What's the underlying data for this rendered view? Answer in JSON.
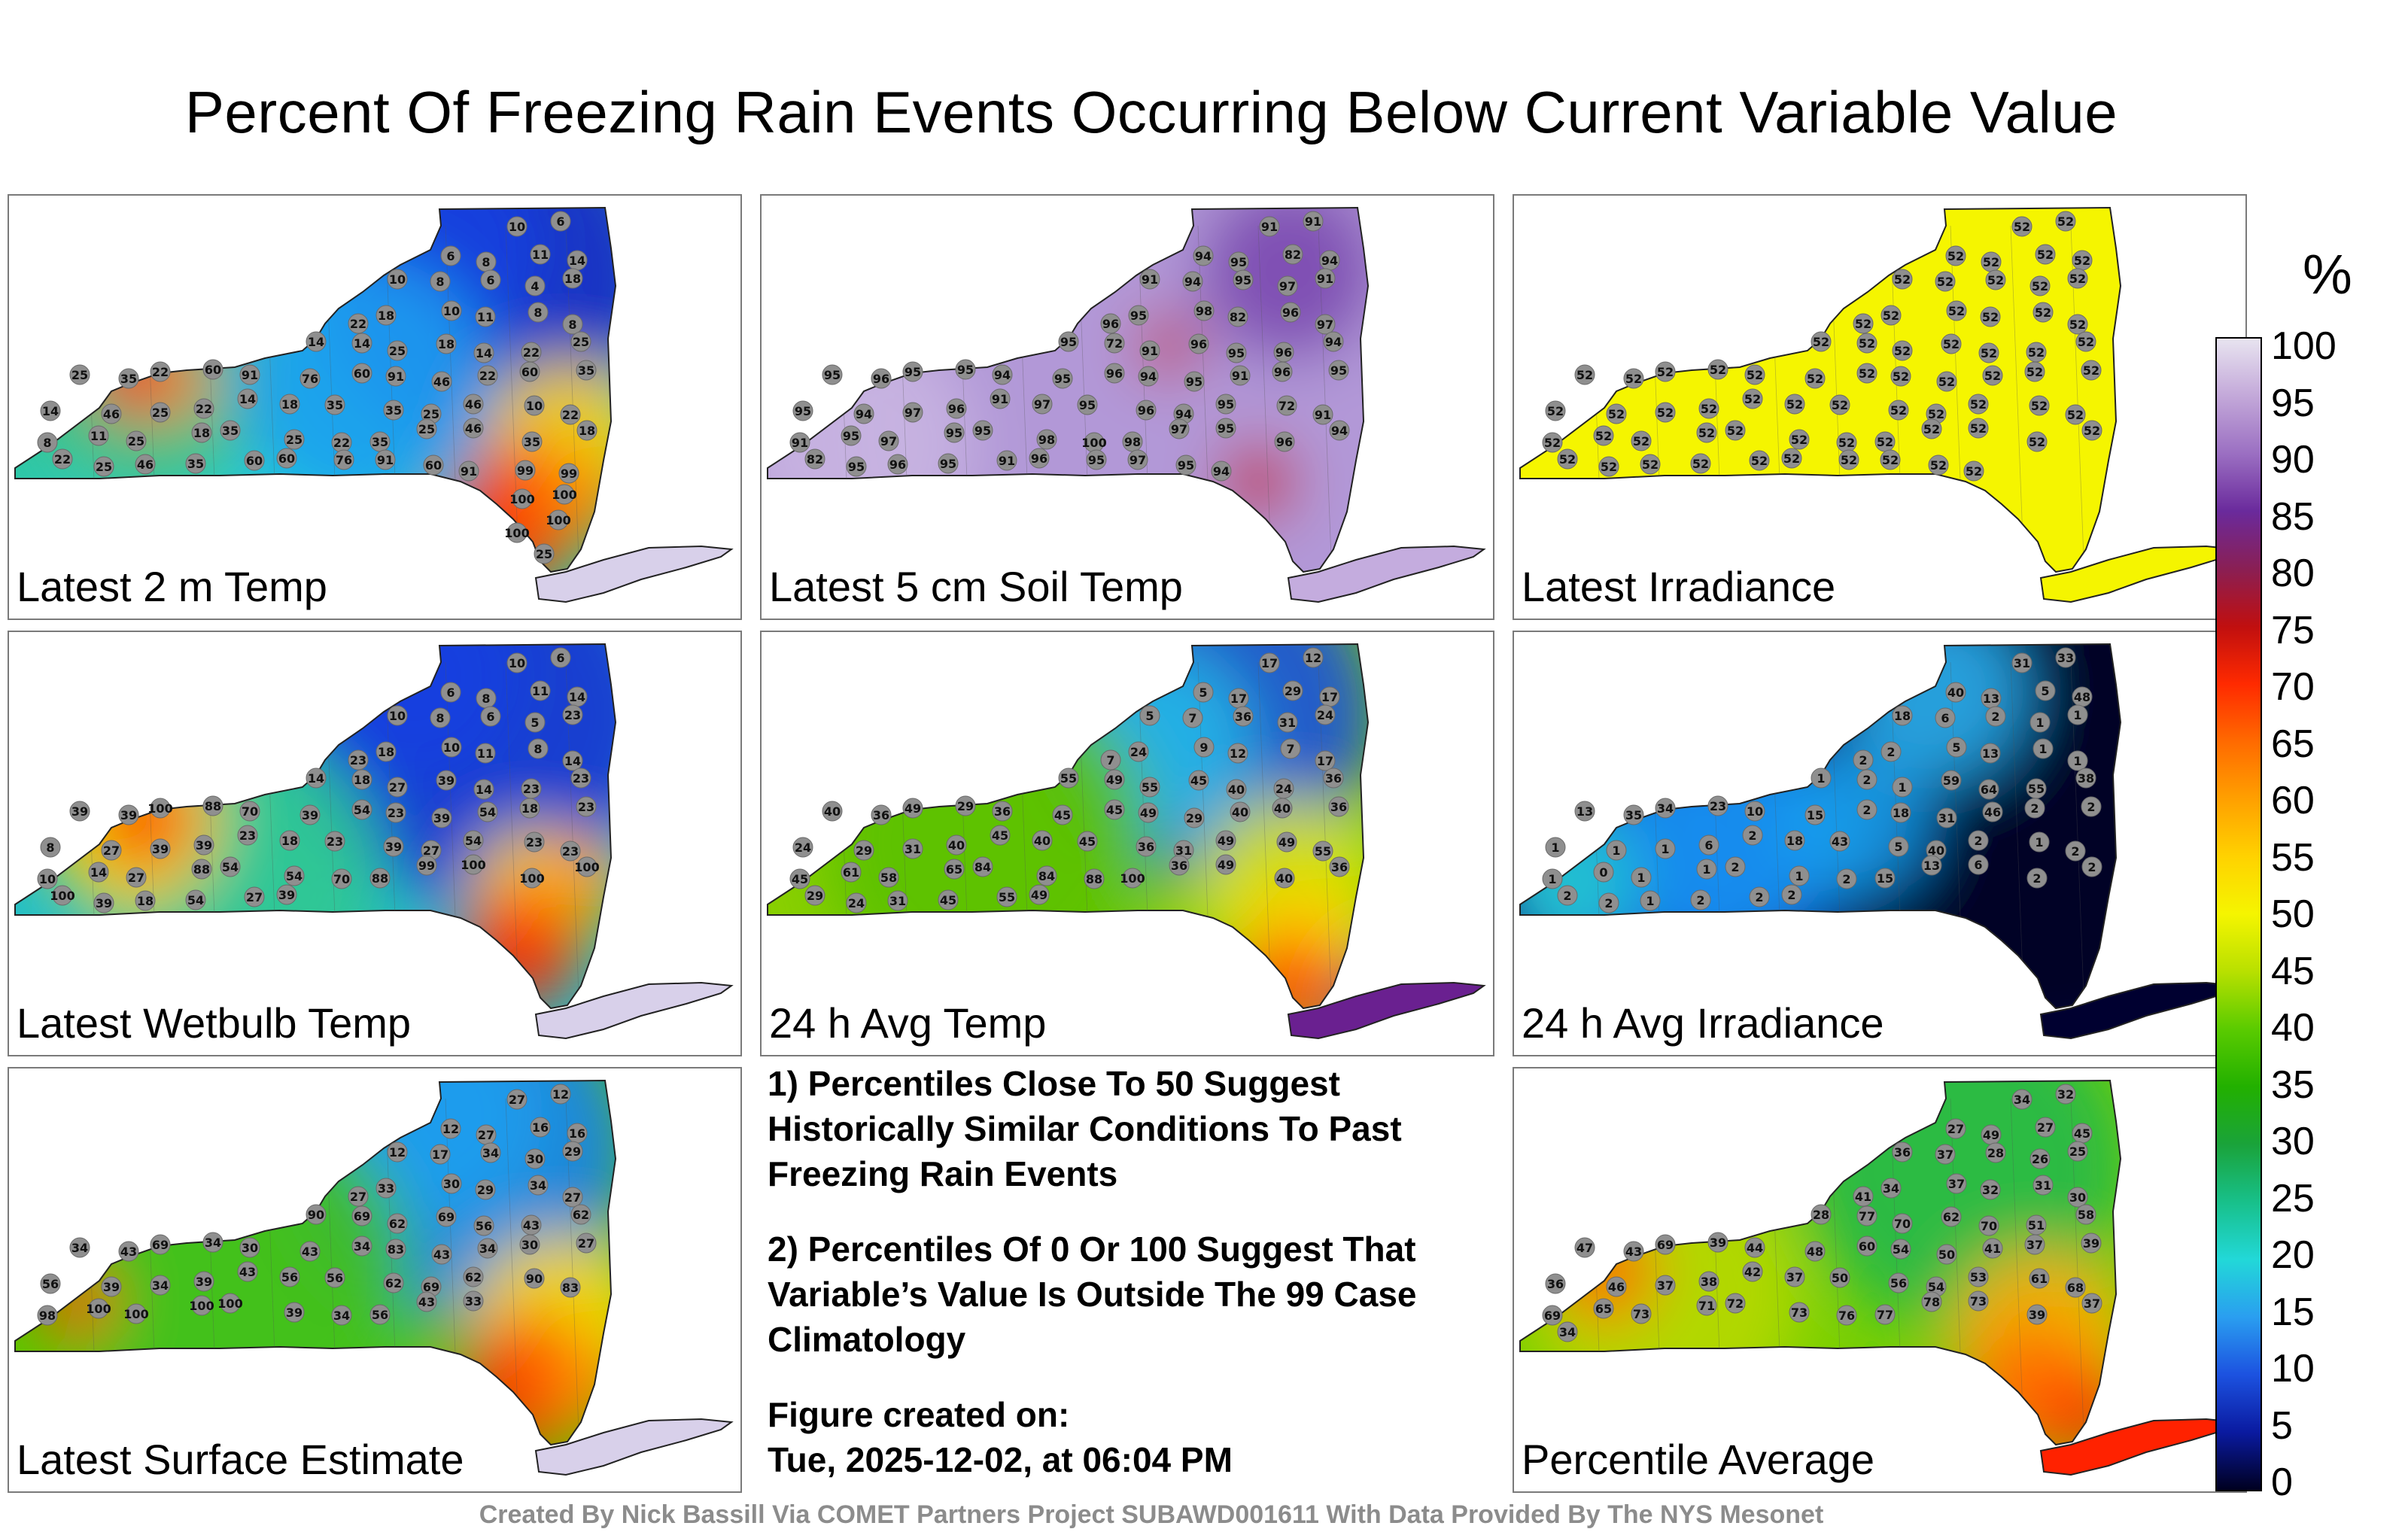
{
  "title": "Percent Of Freezing Rain Events Occurring Below Current Variable Value",
  "panels": [
    {
      "label": "Latest 2 m Temp",
      "theme": "temp2m",
      "values": [
        "10",
        "6",
        "6",
        "8",
        "11",
        "14",
        "10",
        "8",
        "6",
        "4",
        "18",
        "22",
        "18",
        "10",
        "11",
        "8",
        "8",
        "14",
        "14",
        "25",
        "18",
        "14",
        "22",
        "25",
        "25",
        "35",
        "22",
        "60",
        "91",
        "76",
        "60",
        "91",
        "46",
        "22",
        "60",
        "35",
        "14",
        "46",
        "25",
        "22",
        "14",
        "18",
        "35",
        "35",
        "25",
        "46",
        "10",
        "22",
        "8",
        "11",
        "25",
        "18",
        "35",
        "25",
        "22",
        "35",
        "25",
        "46",
        "35",
        "18",
        "22",
        "25",
        "46",
        "35",
        "60",
        "60",
        "76",
        "91",
        "60",
        "91",
        "99",
        "99",
        "100",
        "100",
        "100",
        "100",
        "25",
        "91"
      ]
    },
    {
      "label": "Latest 5 cm Soil Temp",
      "theme": "soil",
      "values": [
        "91",
        "91",
        "94",
        "95",
        "82",
        "94",
        "91",
        "94",
        "95",
        "97",
        "91",
        "96",
        "95",
        "98",
        "82",
        "96",
        "97",
        "95",
        "72",
        "91",
        "96",
        "95",
        "96",
        "94",
        "95",
        "96",
        "95",
        "95",
        "94",
        "95",
        "96",
        "94",
        "95",
        "91",
        "96",
        "95",
        "95",
        "94",
        "97",
        "96",
        "91",
        "97",
        "95",
        "96",
        "94",
        "95",
        "72",
        "91",
        "91",
        "95",
        "97",
        "95",
        "95",
        "98",
        "100",
        "98",
        "97",
        "95",
        "96",
        "94",
        "82",
        "95",
        "96",
        "95",
        "91",
        "96",
        "95",
        "97",
        "95",
        "94"
      ]
    },
    {
      "label": "Latest Irradiance",
      "theme": "irr",
      "values": [
        "52",
        "52",
        "52",
        "52",
        "52",
        "52",
        "52",
        "52",
        "52",
        "52",
        "52",
        "52",
        "52",
        "52",
        "52",
        "52",
        "52",
        "52",
        "52",
        "52",
        "52",
        "52",
        "52",
        "52",
        "52",
        "52",
        "52",
        "52",
        "52",
        "52",
        "52",
        "52",
        "52",
        "52",
        "52",
        "52",
        "52",
        "52",
        "52",
        "52",
        "52",
        "52",
        "52",
        "52",
        "52",
        "52",
        "52",
        "52",
        "52",
        "52",
        "52",
        "52",
        "52",
        "52",
        "52",
        "52",
        "52",
        "52",
        "52",
        "52",
        "52",
        "52",
        "52",
        "52",
        "52",
        "52",
        "52",
        "52",
        "52",
        "52"
      ]
    },
    {
      "label": "Latest Wetbulb Temp",
      "theme": "wetbulb",
      "values": [
        "10",
        "6",
        "6",
        "8",
        "11",
        "14",
        "10",
        "8",
        "6",
        "5",
        "23",
        "23",
        "18",
        "10",
        "11",
        "8",
        "14",
        "14",
        "18",
        "27",
        "39",
        "14",
        "23",
        "23",
        "39",
        "39",
        "100",
        "88",
        "70",
        "39",
        "54",
        "23",
        "39",
        "54",
        "18",
        "23",
        "8",
        "27",
        "39",
        "39",
        "23",
        "18",
        "23",
        "39",
        "27",
        "54",
        "23",
        "23",
        "10",
        "14",
        "27",
        "88",
        "54",
        "54",
        "70",
        "88",
        "99",
        "100",
        "100",
        "100",
        "100",
        "39",
        "18",
        "54",
        "27",
        "39"
      ]
    },
    {
      "label": "24 h Avg Temp",
      "theme": "avgtemp",
      "values": [
        "17",
        "12",
        "5",
        "17",
        "29",
        "17",
        "5",
        "7",
        "36",
        "31",
        "24",
        "7",
        "24",
        "9",
        "12",
        "7",
        "17",
        "55",
        "49",
        "55",
        "45",
        "40",
        "24",
        "36",
        "40",
        "36",
        "49",
        "29",
        "36",
        "45",
        "45",
        "49",
        "29",
        "40",
        "40",
        "36",
        "24",
        "29",
        "31",
        "40",
        "45",
        "40",
        "45",
        "36",
        "31",
        "49",
        "49",
        "55",
        "45",
        "61",
        "58",
        "65",
        "84",
        "84",
        "88",
        "100",
        "36",
        "49",
        "40",
        "36",
        "29",
        "24",
        "31",
        "45",
        "55",
        "49"
      ]
    },
    {
      "label": "24 h Avg Irradiance",
      "theme": "avgirr",
      "values": [
        "31",
        "33",
        "40",
        "13",
        "5",
        "48",
        "18",
        "6",
        "2",
        "1",
        "1",
        "2",
        "2",
        "5",
        "13",
        "1",
        "1",
        "1",
        "2",
        "1",
        "59",
        "64",
        "55",
        "38",
        "13",
        "35",
        "34",
        "23",
        "10",
        "15",
        "2",
        "18",
        "31",
        "46",
        "2",
        "2",
        "1",
        "1",
        "1",
        "6",
        "2",
        "18",
        "43",
        "5",
        "40",
        "2",
        "1",
        "2",
        "1",
        "0",
        "1",
        "1",
        "2",
        "1",
        "2",
        "15",
        "13",
        "6",
        "2",
        "2",
        "2",
        "2",
        "1",
        "2",
        "2",
        "2"
      ]
    },
    {
      "label": "Latest Surface Estimate",
      "theme": "surface",
      "values": [
        "27",
        "12",
        "12",
        "27",
        "16",
        "16",
        "12",
        "17",
        "34",
        "30",
        "29",
        "27",
        "33",
        "30",
        "29",
        "34",
        "27",
        "90",
        "69",
        "62",
        "69",
        "56",
        "43",
        "62",
        "34",
        "43",
        "69",
        "34",
        "30",
        "43",
        "34",
        "83",
        "43",
        "34",
        "30",
        "27",
        "56",
        "39",
        "34",
        "39",
        "43",
        "56",
        "56",
        "62",
        "69",
        "62",
        "90",
        "83",
        "98",
        "100",
        "100",
        "100",
        "100",
        "39",
        "34",
        "56",
        "43",
        "33"
      ]
    },
    {
      "label": "Percentile Average",
      "theme": "avg",
      "values": [
        "34",
        "32",
        "27",
        "49",
        "27",
        "45",
        "36",
        "37",
        "28",
        "26",
        "25",
        "41",
        "34",
        "37",
        "32",
        "31",
        "30",
        "28",
        "77",
        "70",
        "62",
        "70",
        "51",
        "58",
        "47",
        "43",
        "69",
        "39",
        "44",
        "48",
        "60",
        "54",
        "50",
        "41",
        "37",
        "39",
        "36",
        "46",
        "37",
        "38",
        "42",
        "37",
        "50",
        "56",
        "54",
        "53",
        "61",
        "68",
        "69",
        "65",
        "73",
        "71",
        "72",
        "73",
        "76",
        "77",
        "78",
        "73",
        "39",
        "37",
        "34"
      ]
    }
  ],
  "notes": [
    "1) Percentiles Close To 50 Suggest Historically Similar Conditions To Past Freezing Rain Events",
    "2) Percentiles Of 0 Or 100 Suggest That Variable’s Value Is Outside The 99 Case Climatology",
    "Figure created on:",
    "Tue, 2025-12-02, at 06:04 PM"
  ],
  "colorbar": {
    "unit": "%",
    "ticks": [
      "100",
      "95",
      "90",
      "85",
      "80",
      "75",
      "70",
      "65",
      "60",
      "55",
      "50",
      "45",
      "40",
      "35",
      "30",
      "25",
      "20",
      "15",
      "10",
      "5",
      "0"
    ],
    "stops": [
      "#e8e4f0",
      "#c3a8d9",
      "#9b6fc2",
      "#6a2a9c",
      "#8a1f54",
      "#c00f0f",
      "#ff2a00",
      "#ff6a00",
      "#ffa000",
      "#ffd200",
      "#f5f500",
      "#b8e000",
      "#5acb00",
      "#22b000",
      "#1aa33a",
      "#18c08a",
      "#22d8d8",
      "#2a9ef0",
      "#1c52e0",
      "#0a1aa0",
      "#000020"
    ]
  },
  "credit": "Created By Nick Bassill Via COMET Partners Project SUBAWD001611 With Data Provided By The NYS Mesonet"
}
